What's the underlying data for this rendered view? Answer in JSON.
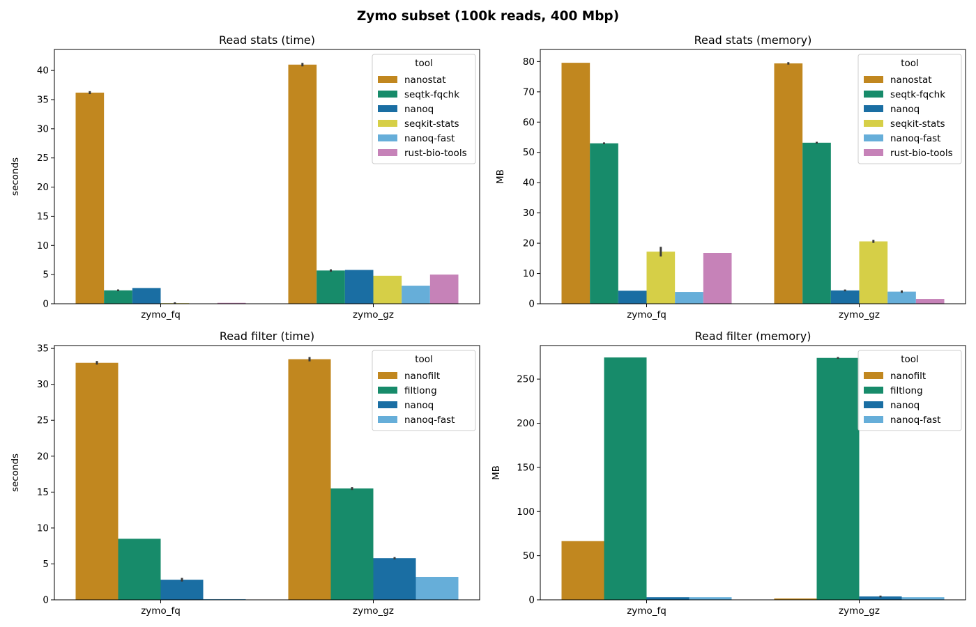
{
  "suptitle": "Zymo subset (100k reads, 400 Mbp)",
  "colors": {
    "nanostat": "#c1871f",
    "nanofilt": "#c1871f",
    "seqtk-fqchk": "#178b6a",
    "filtlong": "#178b6a",
    "nanoq": "#1a6ea3",
    "seqkit-stats": "#d6cf47",
    "nanoq-fast": "#66aed9",
    "rust-bio-tools": "#c682b8"
  },
  "chart_data": [
    {
      "type": "bar",
      "title": "Read stats (time)",
      "xlabel": "",
      "ylabel": "seconds",
      "ylim": [
        0,
        43.6
      ],
      "yticks": [
        0,
        5,
        10,
        15,
        20,
        25,
        30,
        35,
        40
      ],
      "categories": [
        "zymo_fq",
        "zymo_gz"
      ],
      "legend_title": "tool",
      "legend_position": "top-right",
      "series": [
        {
          "name": "nanostat",
          "values": [
            36.2,
            41.0
          ],
          "err": [
            0.25,
            0.3
          ]
        },
        {
          "name": "seqtk-fqchk",
          "values": [
            2.3,
            5.7
          ],
          "err": [
            0.15,
            0.2
          ]
        },
        {
          "name": "nanoq",
          "values": [
            2.7,
            5.8
          ],
          "err": [
            0,
            0
          ]
        },
        {
          "name": "seqkit-stats",
          "values": [
            0.1,
            4.8
          ],
          "err": [
            0.15,
            0
          ]
        },
        {
          "name": "nanoq-fast",
          "values": [
            0.05,
            3.1
          ],
          "err": [
            0,
            0
          ]
        },
        {
          "name": "rust-bio-tools",
          "values": [
            0.15,
            5.0
          ],
          "err": [
            0,
            0
          ]
        }
      ]
    },
    {
      "type": "bar",
      "title": "Read stats (memory)",
      "xlabel": "",
      "ylabel": "MB",
      "ylim": [
        0,
        84
      ],
      "yticks": [
        0,
        10,
        20,
        30,
        40,
        50,
        60,
        70,
        80
      ],
      "categories": [
        "zymo_fq",
        "zymo_gz"
      ],
      "legend_title": "tool",
      "legend_position": "top-right",
      "series": [
        {
          "name": "nanostat",
          "values": [
            79.6,
            79.4
          ],
          "err": [
            0,
            0.4
          ]
        },
        {
          "name": "seqtk-fqchk",
          "values": [
            53.0,
            53.2
          ],
          "err": [
            0.3,
            0.3
          ]
        },
        {
          "name": "nanoq",
          "values": [
            4.3,
            4.4
          ],
          "err": [
            0,
            0.3
          ]
        },
        {
          "name": "seqkit-stats",
          "values": [
            17.2,
            20.6
          ],
          "err": [
            1.6,
            0.5
          ]
        },
        {
          "name": "nanoq-fast",
          "values": [
            3.9,
            4.0
          ],
          "err": [
            0,
            0.4
          ]
        },
        {
          "name": "rust-bio-tools",
          "values": [
            16.8,
            1.6
          ],
          "err": [
            0,
            0
          ]
        }
      ]
    },
    {
      "type": "bar",
      "title": "Read filter (time)",
      "xlabel": "",
      "ylabel": "seconds",
      "ylim": [
        0,
        35.4
      ],
      "yticks": [
        0,
        5,
        10,
        15,
        20,
        25,
        30,
        35
      ],
      "categories": [
        "zymo_fq",
        "zymo_gz"
      ],
      "legend_title": "tool",
      "legend_position": "top-right",
      "series": [
        {
          "name": "nanofilt",
          "values": [
            33.0,
            33.5
          ],
          "err": [
            0.25,
            0.3
          ]
        },
        {
          "name": "filtlong",
          "values": [
            8.5,
            15.5
          ],
          "err": [
            0,
            0.2
          ]
        },
        {
          "name": "nanoq",
          "values": [
            2.8,
            5.8
          ],
          "err": [
            0.25,
            0.15
          ]
        },
        {
          "name": "nanoq-fast",
          "values": [
            0.1,
            3.2
          ],
          "err": [
            0,
            0
          ]
        }
      ]
    },
    {
      "type": "bar",
      "title": "Read filter (memory)",
      "xlabel": "",
      "ylabel": "MB",
      "ylim": [
        0,
        288
      ],
      "yticks": [
        0,
        50,
        100,
        150,
        200,
        250
      ],
      "categories": [
        "zymo_fq",
        "zymo_gz"
      ],
      "legend_title": "tool",
      "legend_position": "top-right",
      "series": [
        {
          "name": "nanofilt",
          "values": [
            66.5,
            1.5
          ],
          "err": [
            0,
            0
          ]
        },
        {
          "name": "filtlong",
          "values": [
            274.5,
            274.0
          ],
          "err": [
            0,
            1.0
          ]
        },
        {
          "name": "nanoq",
          "values": [
            3.0,
            3.8
          ],
          "err": [
            0,
            1.0
          ]
        },
        {
          "name": "nanoq-fast",
          "values": [
            3.0,
            3.0
          ],
          "err": [
            0,
            0
          ]
        }
      ]
    }
  ]
}
